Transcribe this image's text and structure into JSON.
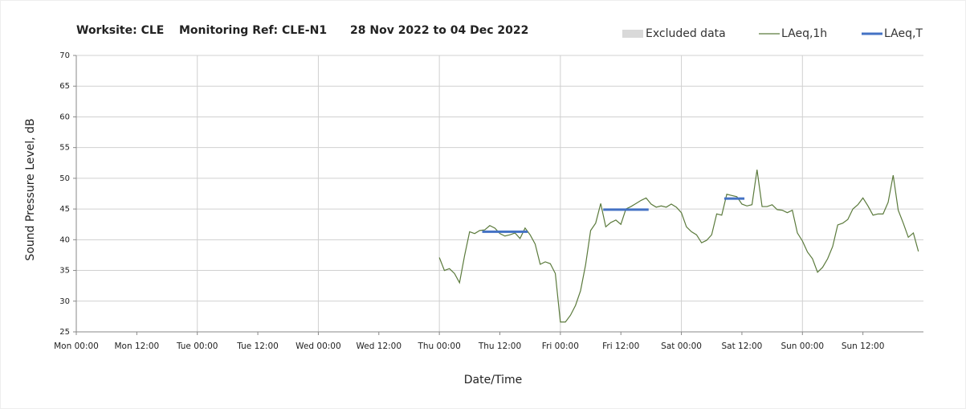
{
  "chart_data": {
    "type": "line",
    "title_parts": [
      "Worksite: CLE",
      "Monitoring Ref: CLE-N1",
      "28 Nov 2022 to 04 Dec 2022"
    ],
    "x_label": "Date/Time",
    "y_label": "Sound Pressure Level, dB",
    "xlim": [
      0,
      168
    ],
    "xticks": [
      {
        "value": 0,
        "label": "Mon 00:00"
      },
      {
        "value": 12,
        "label": "Mon 12:00"
      },
      {
        "value": 24,
        "label": "Tue 00:00"
      },
      {
        "value": 36,
        "label": "Tue 12:00"
      },
      {
        "value": 48,
        "label": "Wed 00:00"
      },
      {
        "value": 60,
        "label": "Wed 12:00"
      },
      {
        "value": 72,
        "label": "Thu 00:00"
      },
      {
        "value": 84,
        "label": "Thu 12:00"
      },
      {
        "value": 96,
        "label": "Fri 00:00"
      },
      {
        "value": 108,
        "label": "Fri 12:00"
      },
      {
        "value": 120,
        "label": "Sat 00:00"
      },
      {
        "value": 132,
        "label": "Sat 12:00"
      },
      {
        "value": 144,
        "label": "Sun 00:00"
      },
      {
        "value": 156,
        "label": "Sun 12:00"
      }
    ],
    "ylim": [
      25,
      70
    ],
    "yticks": [
      25,
      30,
      35,
      40,
      45,
      50,
      55,
      60,
      65,
      70
    ],
    "grid": true,
    "legend": "top-right",
    "excluded": {
      "name": "Excluded data",
      "color": "#d9d9d9"
    },
    "series": [
      {
        "name": "LAeq,1h",
        "color": "#5b7a3c",
        "x": [
          72,
          73,
          74,
          75,
          76,
          77,
          78,
          79,
          80,
          81,
          82,
          83,
          84,
          85,
          86,
          87,
          88,
          89,
          90,
          91,
          92,
          93,
          94,
          95,
          96,
          97,
          98,
          99,
          100,
          101,
          102,
          103,
          104,
          105,
          106,
          107,
          108,
          109,
          110,
          111,
          112,
          113,
          114,
          115,
          116,
          117,
          118,
          119,
          120,
          121,
          122,
          123,
          124,
          125,
          126,
          127,
          128,
          129,
          130,
          131,
          132,
          133,
          134,
          135,
          136,
          137,
          138,
          139,
          140,
          141,
          142,
          143,
          144,
          145,
          146,
          147,
          148,
          149,
          150,
          151,
          152,
          153,
          154,
          155,
          156,
          157,
          158,
          159,
          160,
          161,
          162,
          163,
          164,
          165,
          166,
          167
        ],
        "values": [
          37.1,
          35,
          35.3,
          34.5,
          33,
          37.4,
          41.3,
          41,
          41.5,
          41.6,
          42.3,
          41.9,
          41,
          40.6,
          40.8,
          41.1,
          40.2,
          41.9,
          40.8,
          39.3,
          36,
          36.4,
          36.1,
          34.5,
          26.6,
          26.6,
          27.7,
          29.3,
          31.7,
          35.9,
          41.5,
          42.7,
          45.9,
          42.1,
          42.8,
          43.2,
          42.5,
          45,
          45.4,
          45.9,
          46.4,
          46.8,
          45.8,
          45.3,
          45.5,
          45.3,
          45.8,
          45.3,
          44.4,
          42.1,
          41.3,
          40.8,
          39.5,
          39.9,
          40.8,
          44.2,
          44,
          47.4,
          47.2,
          47,
          45.8,
          45.5,
          45.7,
          51.4,
          45.4,
          45.4,
          45.7,
          44.9,
          44.8,
          44.4,
          44.8,
          41.1,
          39.8,
          38,
          36.9,
          34.7,
          35.5,
          36.9,
          38.9,
          42.4,
          42.7,
          43.3,
          45,
          45.7,
          46.8,
          45.5,
          44,
          44.2,
          44.2,
          46.1,
          50.5,
          44.8,
          42.7,
          40.4,
          41.1,
          38.1
        ]
      },
      {
        "name": "LAeq,T",
        "color": "#4472c4",
        "segments": [
          {
            "x": [
              80.5,
              89.5
            ],
            "value": 41.3
          },
          {
            "x": [
              104.5,
              113.5
            ],
            "value": 44.9
          },
          {
            "x": [
              128.5,
              132.5
            ],
            "value": 46.7
          }
        ]
      }
    ]
  }
}
